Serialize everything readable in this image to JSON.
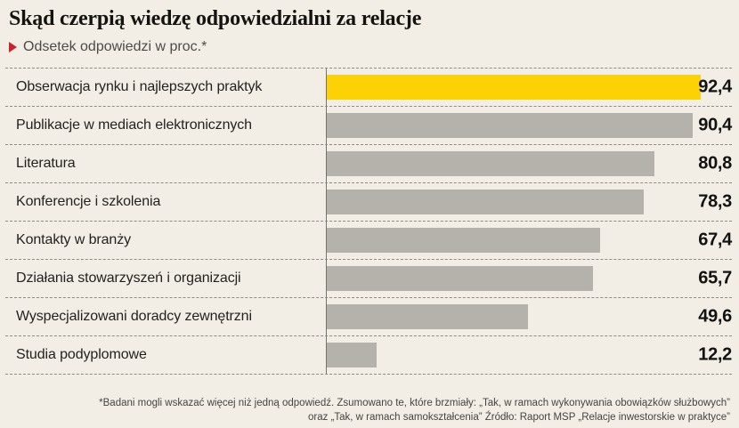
{
  "header": {
    "title": "Skąd czerpią wiedzę odpowiedzialni za relacje",
    "subtitle": "Odsetek odpowiedzi w proc.*"
  },
  "chart_data": {
    "type": "bar",
    "orientation": "horizontal",
    "title": "Skąd czerpią wiedzę odpowiedzialni za relacje",
    "subtitle": "Odsetek odpowiedzi w proc.*",
    "categories": [
      "Obserwacja rynku i najlepszych praktyk",
      "Publikacje w mediach elektronicznych",
      "Literatura",
      "Konferencje i szkolenia",
      "Kontakty w branży",
      "Działania stowarzyszeń i organizacji",
      "Wyspecjalizowani doradcy zewnętrzni",
      "Studia podyplomowe"
    ],
    "values": [
      92.4,
      90.4,
      80.8,
      78.3,
      67.4,
      65.7,
      49.6,
      12.2
    ],
    "value_labels": [
      "92,4",
      "90,4",
      "80,8",
      "78,3",
      "67,4",
      "65,7",
      "49,6",
      "12,2"
    ],
    "xlim": [
      0,
      100
    ],
    "grid": "dashed-row-separators",
    "legend": "none",
    "highlight_index": 0,
    "bar_color": "#b4b2aa",
    "highlight_color": "#fcd204"
  },
  "colors": {
    "background": "#f2eee6",
    "accent_red": "#c8242b",
    "separator": "#8c8c85",
    "baseline": "#74736d",
    "value_text": "#121210"
  },
  "footer": {
    "line1": "*Badani mogli wskazać więcej niż jedną odpowiedź. Zsumowano te, które brzmiały: „Tak, w ramach wykonywania obowiązków służbowych”",
    "line2": "oraz „Tak, w ramach samokształcenia” Źródło: Raport MSP „Relacje inwestorskie w praktyce”"
  }
}
